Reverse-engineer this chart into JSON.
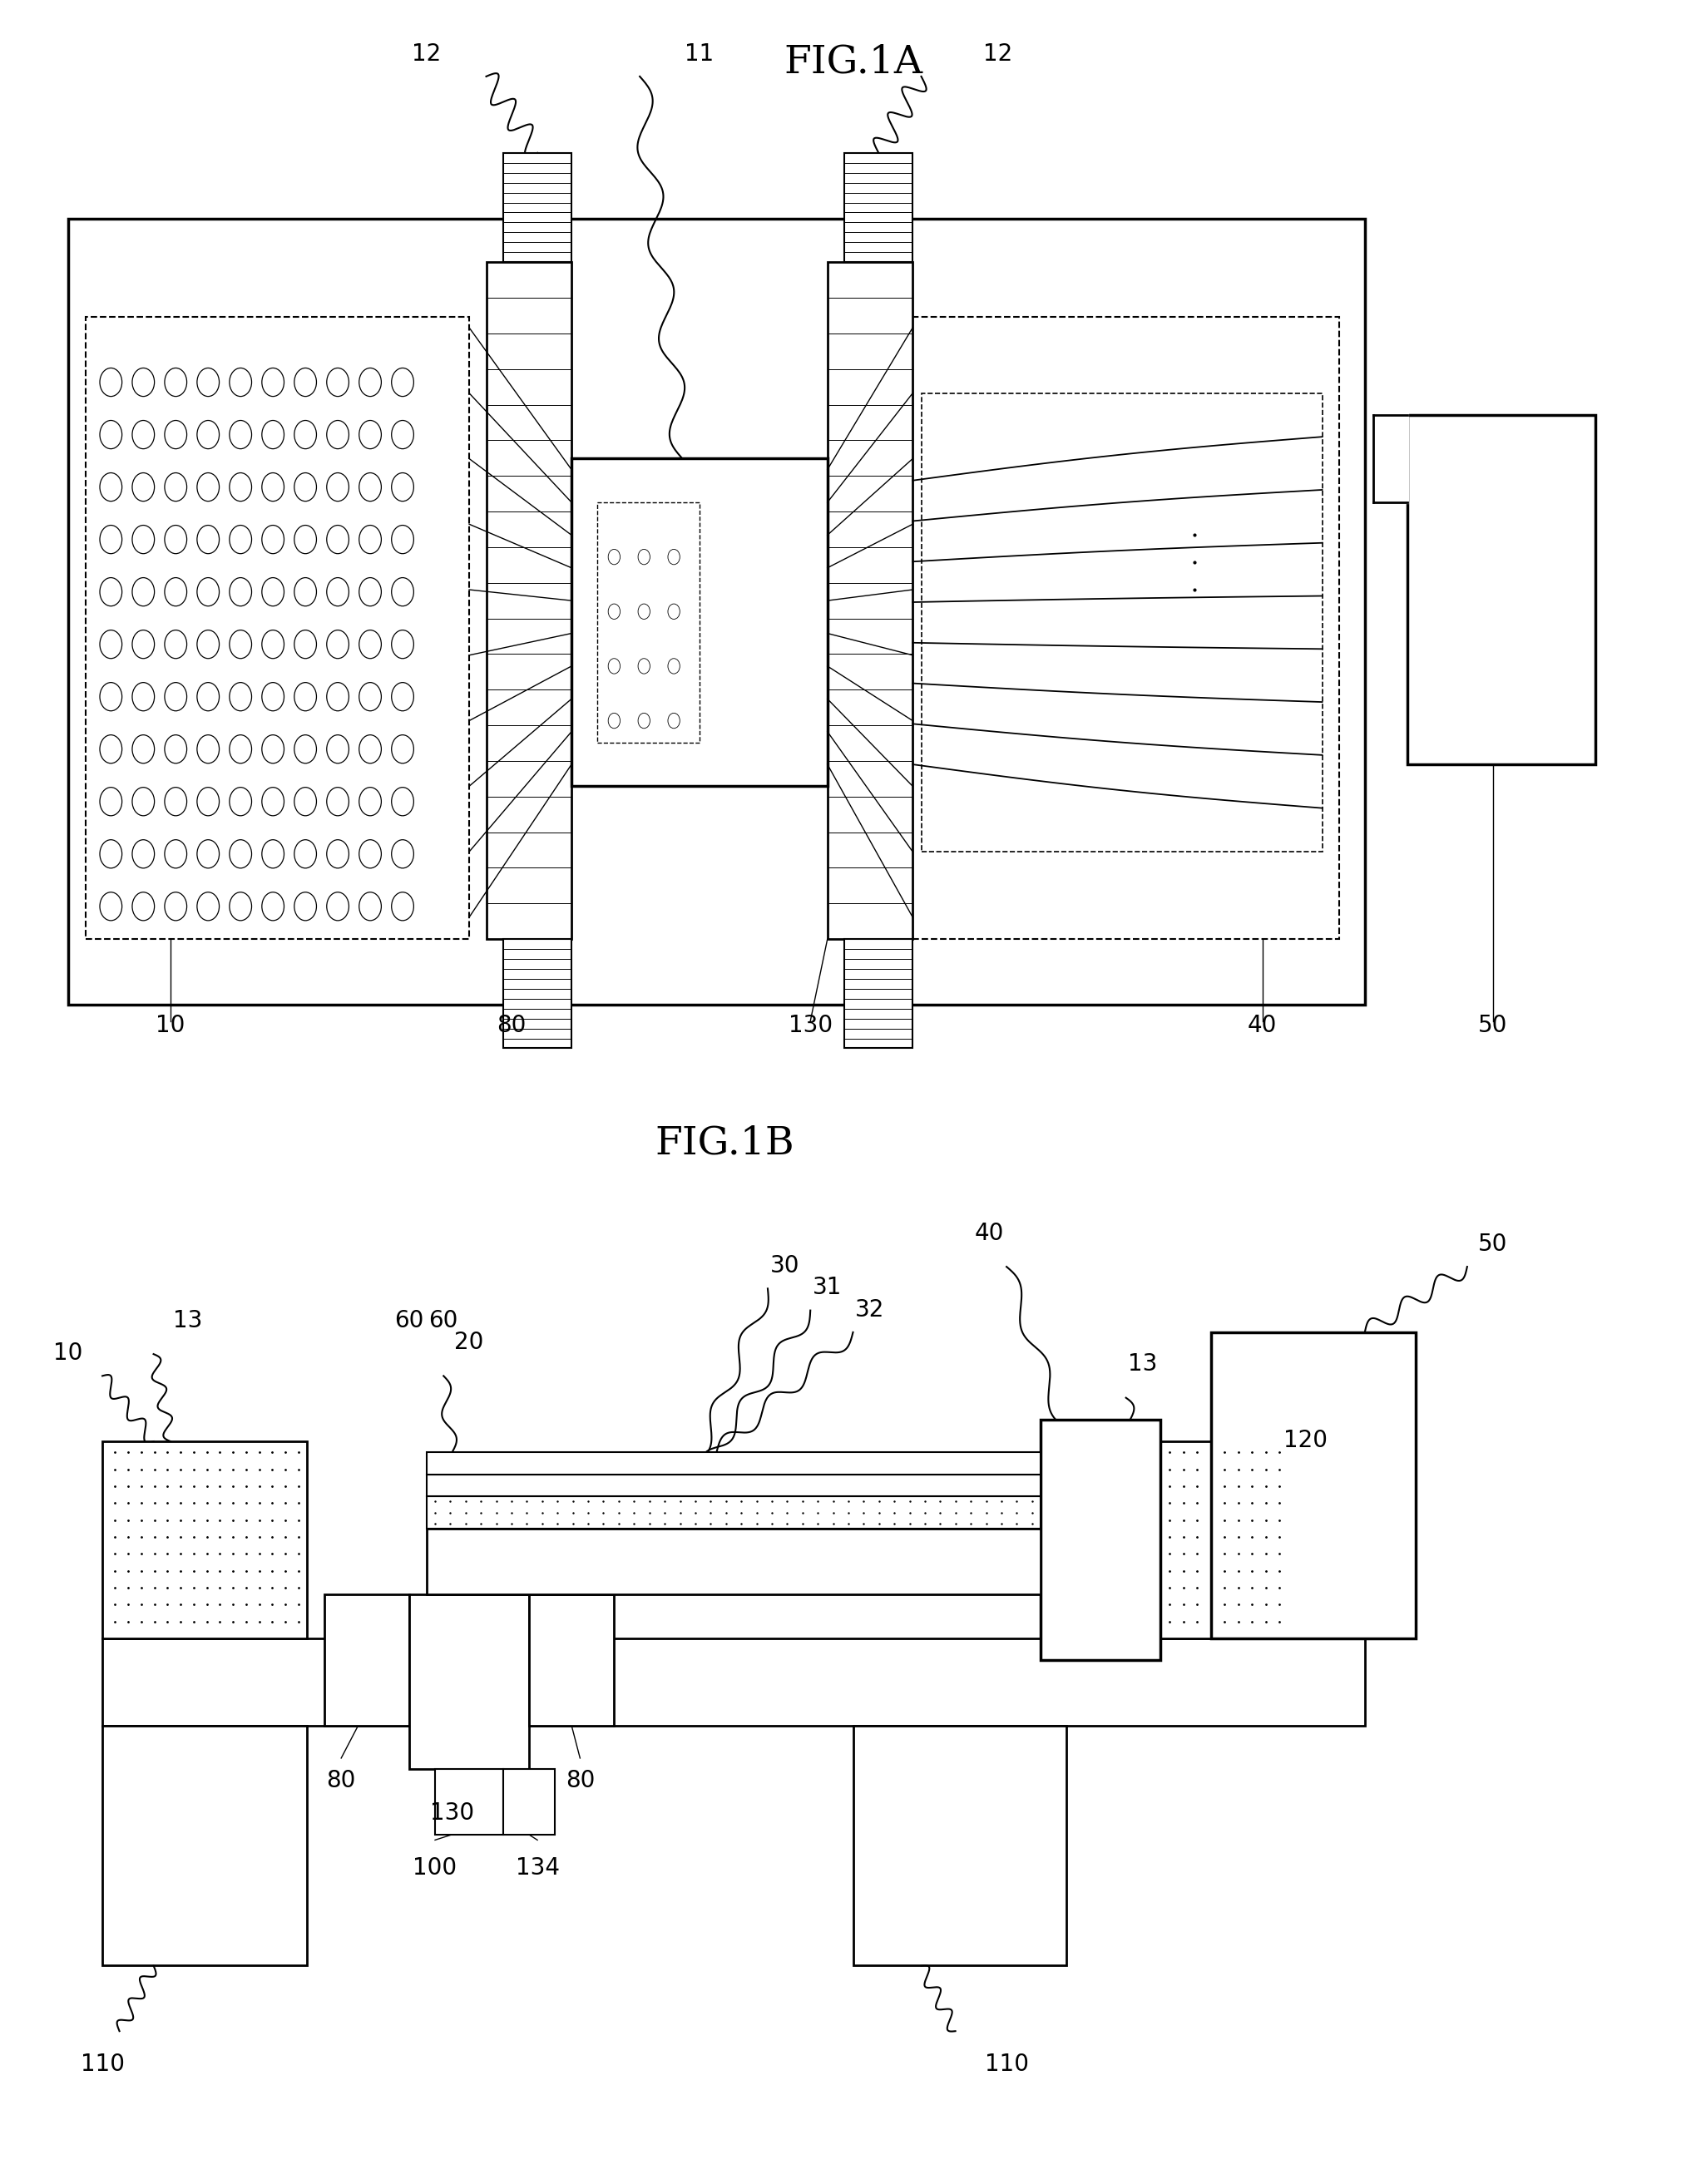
{
  "fig_title_A": "FIG.1A",
  "fig_title_B": "FIG.1B",
  "background_color": "#ffffff",
  "label_fontsize": 20,
  "title_fontsize": 34
}
